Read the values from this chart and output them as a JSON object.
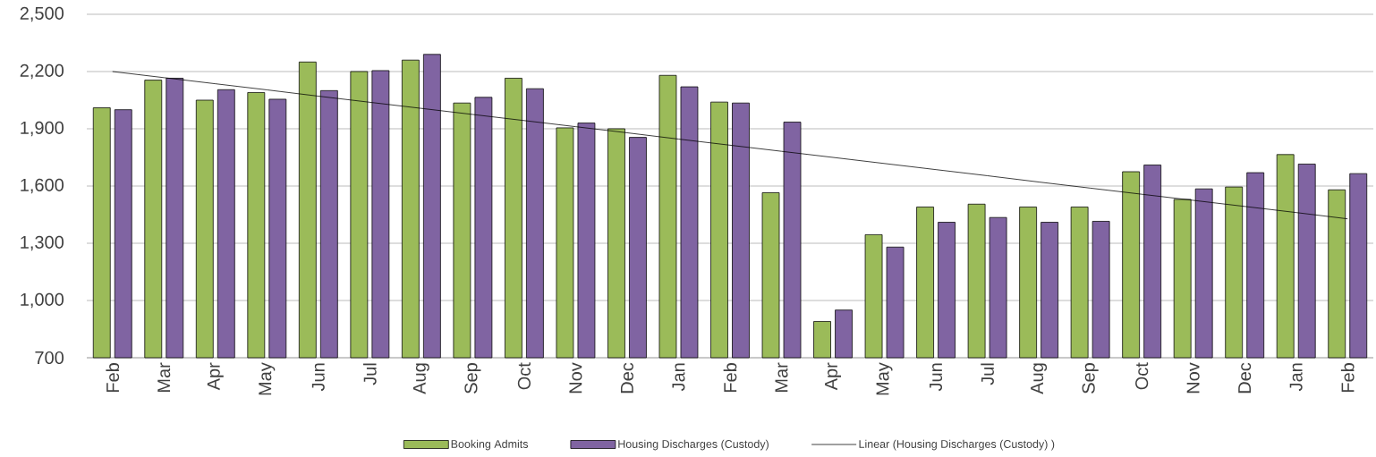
{
  "chart_data": {
    "type": "bar",
    "categories": [
      "Feb",
      "Mar",
      "Apr",
      "May",
      "Jun",
      "Jul",
      "Aug",
      "Sep",
      "Oct",
      "Nov",
      "Dec",
      "Jan",
      "Feb",
      "Mar",
      "Apr",
      "May",
      "Jun",
      "Jul",
      "Aug",
      "Sep",
      "Oct",
      "Nov",
      "Dec",
      "Jan",
      "Feb"
    ],
    "series": [
      {
        "name": "Booking Admits",
        "color": "#9bbb59",
        "values": [
          2010,
          2155,
          2050,
          2090,
          2250,
          2200,
          2260,
          2035,
          2165,
          1905,
          1900,
          2180,
          2040,
          1565,
          890,
          1345,
          1490,
          1505,
          1490,
          1490,
          1675,
          1530,
          1595,
          1765,
          1580
        ]
      },
      {
        "name": "Housing Discharges (Custody)",
        "color": "#8064a2",
        "values": [
          2000,
          2165,
          2105,
          2055,
          2100,
          2205,
          2290,
          2065,
          2110,
          1930,
          1855,
          2120,
          2035,
          1935,
          950,
          1280,
          1410,
          1435,
          1410,
          1415,
          1710,
          1585,
          1670,
          1715,
          1665
        ]
      },
      {
        "name": "Linear (Housing Discharges (Custody) )",
        "type": "line",
        "color": "#000000",
        "marker": "none",
        "values": [
          2200,
          2168,
          2136,
          2104,
          2071,
          2039,
          2007,
          1975,
          1943,
          1911,
          1879,
          1846,
          1814,
          1782,
          1750,
          1718,
          1686,
          1654,
          1621,
          1589,
          1557,
          1525,
          1493,
          1461,
          1428
        ]
      }
    ],
    "ylim": [
      700,
      2500
    ],
    "yticks": [
      700,
      {
        "value": 1000,
        "label": "1,000"
      },
      {
        "value": 1300,
        "label": "1,300"
      },
      {
        "value": 1600,
        "label": "1,600"
      },
      {
        "value": 1900,
        "label": "1,900"
      },
      {
        "value": 2200,
        "label": "2,200"
      },
      {
        "value": 2500,
        "label": "2,500"
      }
    ],
    "grid": "y",
    "legend": "bottom"
  }
}
